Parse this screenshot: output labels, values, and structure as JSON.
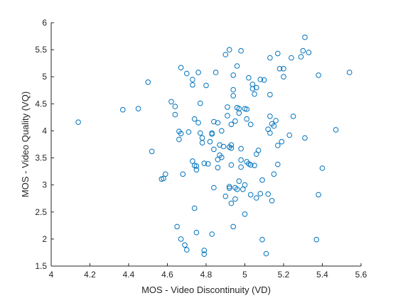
{
  "chart_data": {
    "type": "scatter",
    "title": "",
    "xlabel": "MOS - Video Discontinuity (VD)",
    "ylabel": "MOS - Video Quality (VQ)",
    "xlim": [
      4,
      5.6
    ],
    "ylim": [
      1.5,
      6
    ],
    "xticks": [
      4,
      4.2,
      4.4,
      4.6,
      4.8,
      5,
      5.2,
      5.4,
      5.6
    ],
    "yticks": [
      1.5,
      2,
      2.5,
      3,
      3.5,
      4,
      4.5,
      5,
      5.5,
      6
    ],
    "xtick_labels": [
      "4",
      "4.2",
      "4.4",
      "4.6",
      "4.8",
      "5",
      "5.2",
      "5.4",
      "5.6"
    ],
    "ytick_labels": [
      "1.5",
      "2",
      "2.5",
      "3",
      "3.5",
      "4",
      "4.5",
      "5",
      "5.5",
      "6"
    ],
    "grid": false,
    "marker_color": "#0072bd",
    "series": [
      {
        "points": [
          [
            4.14,
            4.16
          ],
          [
            4.37,
            4.39
          ],
          [
            4.45,
            4.41
          ],
          [
            4.5,
            4.9
          ],
          [
            4.52,
            3.62
          ],
          [
            4.57,
            3.11
          ],
          [
            4.58,
            3.12
          ],
          [
            4.59,
            3.2
          ],
          [
            4.62,
            4.54
          ],
          [
            4.64,
            4.45
          ],
          [
            4.64,
            4.3
          ],
          [
            4.65,
            2.23
          ],
          [
            4.66,
            3.99
          ],
          [
            4.66,
            3.84
          ],
          [
            4.67,
            3.95
          ],
          [
            4.67,
            2.0
          ],
          [
            4.67,
            5.17
          ],
          [
            4.68,
            3.2
          ],
          [
            4.69,
            1.89
          ],
          [
            4.7,
            5.06
          ],
          [
            4.7,
            1.8
          ],
          [
            4.71,
            3.98
          ],
          [
            4.73,
            3.44
          ],
          [
            4.73,
            4.95
          ],
          [
            4.73,
            4.85
          ],
          [
            4.74,
            2.57
          ],
          [
            4.74,
            4.22
          ],
          [
            4.74,
            3.36
          ],
          [
            4.75,
            3.28
          ],
          [
            4.75,
            2.12
          ],
          [
            4.75,
            3.35
          ],
          [
            4.76,
            5.08
          ],
          [
            4.76,
            4.15
          ],
          [
            4.77,
            4.51
          ],
          [
            4.77,
            3.96
          ],
          [
            4.78,
            3.78
          ],
          [
            4.78,
            3.87
          ],
          [
            4.79,
            1.79
          ],
          [
            4.79,
            1.72
          ],
          [
            4.79,
            3.4
          ],
          [
            4.8,
            4.84
          ],
          [
            4.81,
            3.39
          ],
          [
            4.82,
            3.8
          ],
          [
            4.83,
            3.94
          ],
          [
            4.83,
            3.96
          ],
          [
            4.83,
            2.09
          ],
          [
            4.84,
            4.17
          ],
          [
            4.84,
            3.66
          ],
          [
            4.84,
            2.95
          ],
          [
            4.85,
            5.08
          ],
          [
            4.86,
            3.32
          ],
          [
            4.86,
            3.47
          ],
          [
            4.86,
            4.15
          ],
          [
            4.87,
            3.55
          ],
          [
            4.87,
            3.74
          ],
          [
            4.88,
            4.0
          ],
          [
            4.88,
            3.51
          ],
          [
            4.89,
            3.71
          ],
          [
            4.9,
            5.41
          ],
          [
            4.9,
            2.79
          ],
          [
            4.91,
            4.44
          ],
          [
            4.91,
            4.28
          ],
          [
            4.92,
            5.5
          ],
          [
            4.92,
            2.94
          ],
          [
            4.92,
            2.97
          ],
          [
            4.92,
            3.7
          ],
          [
            4.93,
            3.74
          ],
          [
            4.93,
            3.68
          ],
          [
            4.93,
            2.66
          ],
          [
            4.93,
            4.12
          ],
          [
            4.93,
            3.37
          ],
          [
            4.94,
            2.23
          ],
          [
            4.94,
            4.76
          ],
          [
            4.94,
            4.65
          ],
          [
            4.94,
            5.03
          ],
          [
            4.95,
            4.18
          ],
          [
            4.95,
            2.95
          ],
          [
            4.95,
            2.74
          ],
          [
            4.96,
            5.2
          ],
          [
            4.96,
            2.92
          ],
          [
            4.96,
            4.43
          ],
          [
            4.97,
            4.33
          ],
          [
            4.97,
            3.07
          ],
          [
            4.97,
            4.41
          ],
          [
            4.98,
            3.67
          ],
          [
            4.98,
            3.46
          ],
          [
            4.98,
            3.33
          ],
          [
            4.98,
            5.48
          ],
          [
            4.99,
            2.92
          ],
          [
            5.0,
            4.41
          ],
          [
            5.0,
            3.0
          ],
          [
            5.0,
            2.46
          ],
          [
            5.01,
            4.4
          ],
          [
            5.01,
            3.43
          ],
          [
            5.01,
            4.22
          ],
          [
            5.02,
            3.39
          ],
          [
            5.02,
            4.98
          ],
          [
            5.03,
            2.82
          ],
          [
            5.03,
            4.12
          ],
          [
            5.03,
            3.37
          ],
          [
            5.04,
            4.78
          ],
          [
            5.04,
            4.86
          ],
          [
            5.05,
            4.68
          ],
          [
            5.05,
            3.36
          ],
          [
            5.06,
            4.8
          ],
          [
            5.06,
            3.57
          ],
          [
            5.06,
            2.76
          ],
          [
            5.07,
            3.64
          ],
          [
            5.08,
            2.84
          ],
          [
            5.08,
            4.95
          ],
          [
            5.09,
            1.99
          ],
          [
            5.09,
            3.09
          ],
          [
            5.1,
            4.94
          ],
          [
            5.11,
            1.73
          ],
          [
            5.12,
            4.03
          ],
          [
            5.12,
            2.83
          ],
          [
            5.13,
            5.35
          ],
          [
            5.13,
            3.96
          ],
          [
            5.13,
            4.27
          ],
          [
            5.13,
            4.67
          ],
          [
            5.14,
            4.13
          ],
          [
            5.14,
            2.71
          ],
          [
            5.15,
            4.09
          ],
          [
            5.15,
            3.2
          ],
          [
            5.16,
            4.19
          ],
          [
            5.17,
            3.38
          ],
          [
            5.17,
            3.73
          ],
          [
            5.17,
            5.43
          ],
          [
            5.18,
            5.15
          ],
          [
            5.19,
            3.8
          ],
          [
            5.2,
            5.15
          ],
          [
            5.2,
            5.0
          ],
          [
            5.23,
            3.92
          ],
          [
            5.24,
            5.35
          ],
          [
            5.25,
            4.27
          ],
          [
            5.29,
            5.37
          ],
          [
            5.3,
            5.48
          ],
          [
            5.31,
            5.73
          ],
          [
            5.31,
            3.87
          ],
          [
            5.33,
            5.45
          ],
          [
            5.37,
            1.99
          ],
          [
            5.38,
            2.82
          ],
          [
            5.38,
            5.03
          ],
          [
            5.4,
            3.31
          ],
          [
            5.47,
            4.02
          ],
          [
            5.54,
            5.08
          ]
        ]
      }
    ]
  }
}
